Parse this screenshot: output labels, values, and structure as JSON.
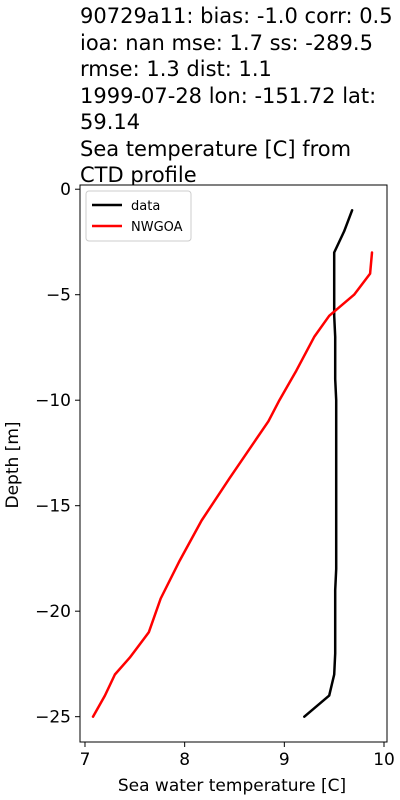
{
  "title": {
    "line1": "90729a11: bias: -1.0  corr: 0.5  ioa: nan  mse: 1.7  ss: -289.5  rmse: 1.3  dist: 1.1",
    "line2": "1999-07-28 lon: -151.72 lat: 59.14",
    "line3": "Sea temperature [C] from CTD profile"
  },
  "chart_data": {
    "type": "line",
    "xlabel": "Sea water temperature [C]",
    "ylabel": "Depth [m]",
    "xlim": [
      6.95,
      10.03
    ],
    "ylim": [
      0.2,
      -26.2
    ],
    "x_ticks": [
      7,
      8,
      9,
      10
    ],
    "y_ticks": [
      0,
      -5,
      -10,
      -15,
      -20,
      -25
    ],
    "y_tick_labels": [
      "0",
      "−5",
      "−10",
      "−15",
      "−20",
      "−25"
    ],
    "legend_position": "top-left",
    "series": [
      {
        "name": "data",
        "color": "#000000",
        "points": [
          [
            9.68,
            -1
          ],
          [
            9.6,
            -2
          ],
          [
            9.5,
            -3
          ],
          [
            9.5,
            -4
          ],
          [
            9.5,
            -5
          ],
          [
            9.5,
            -6
          ],
          [
            9.51,
            -7
          ],
          [
            9.51,
            -8
          ],
          [
            9.51,
            -9
          ],
          [
            9.52,
            -10
          ],
          [
            9.52,
            -11
          ],
          [
            9.52,
            -12
          ],
          [
            9.52,
            -13
          ],
          [
            9.52,
            -14
          ],
          [
            9.52,
            -15
          ],
          [
            9.52,
            -16
          ],
          [
            9.52,
            -17
          ],
          [
            9.52,
            -18
          ],
          [
            9.51,
            -19
          ],
          [
            9.51,
            -20
          ],
          [
            9.51,
            -21
          ],
          [
            9.51,
            -22
          ],
          [
            9.5,
            -23
          ],
          [
            9.45,
            -24
          ],
          [
            9.2,
            -25
          ]
        ]
      },
      {
        "name": "NWGOA",
        "color": "#ff0000",
        "points": [
          [
            9.88,
            -3
          ],
          [
            9.86,
            -4
          ],
          [
            9.7,
            -5
          ],
          [
            9.45,
            -6
          ],
          [
            9.3,
            -7
          ],
          [
            9.12,
            -8.6
          ],
          [
            8.95,
            -10
          ],
          [
            8.84,
            -11
          ],
          [
            8.45,
            -13.7
          ],
          [
            8.17,
            -15.7
          ],
          [
            7.95,
            -17.6
          ],
          [
            7.76,
            -19.4
          ],
          [
            7.64,
            -21
          ],
          [
            7.45,
            -22.2
          ],
          [
            7.3,
            -23
          ],
          [
            7.2,
            -24
          ],
          [
            7.08,
            -25
          ]
        ]
      }
    ]
  }
}
